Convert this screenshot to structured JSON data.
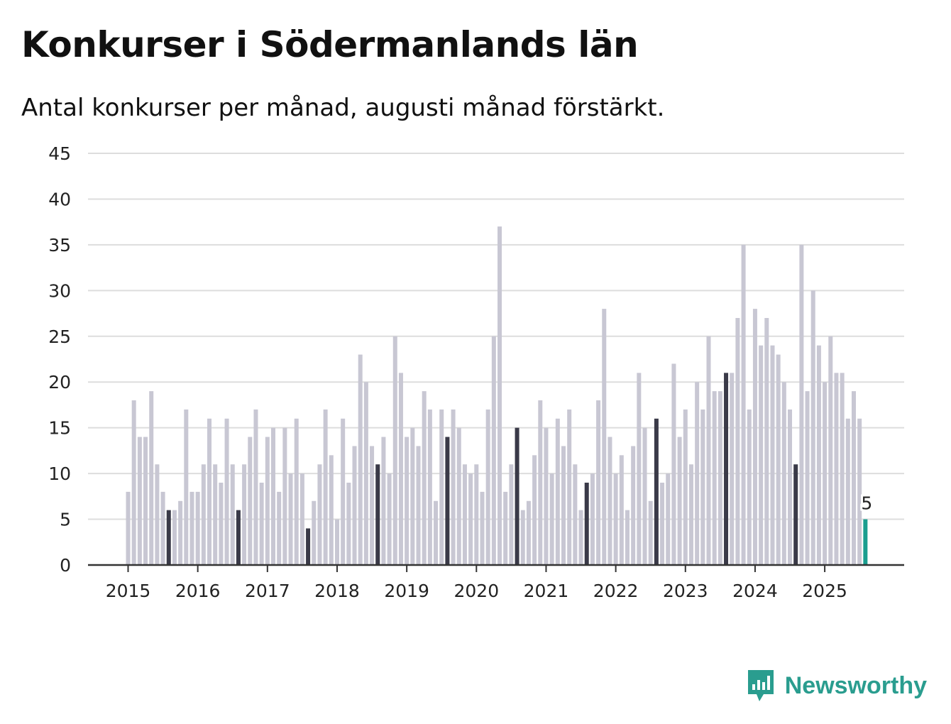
{
  "title": "Konkurser i Södermanlands län",
  "subtitle": "Antal konkurser per månad, augusti månad förstärkt.",
  "brand": "Newsworthy",
  "colors": {
    "bar": "#c8c7d3",
    "highlight": "#3a3a48",
    "latest": "#1a9e8f",
    "brand": "#2a9d8f"
  },
  "chart_data": {
    "type": "bar",
    "start": "2015-01",
    "ylim": [
      0,
      45
    ],
    "yticks": [
      0,
      5,
      10,
      15,
      20,
      25,
      30,
      35,
      40,
      45
    ],
    "xticks": [
      "2015",
      "2016",
      "2017",
      "2018",
      "2019",
      "2020",
      "2021",
      "2022",
      "2023",
      "2024",
      "2025"
    ],
    "highlight_month": "augusti",
    "latest_label": "5",
    "values": [
      8,
      18,
      14,
      14,
      19,
      11,
      8,
      6,
      6,
      7,
      17,
      8,
      8,
      11,
      16,
      11,
      9,
      16,
      11,
      6,
      11,
      14,
      17,
      9,
      14,
      15,
      8,
      15,
      10,
      16,
      10,
      4,
      7,
      11,
      17,
      12,
      5,
      16,
      9,
      13,
      23,
      20,
      13,
      11,
      14,
      10,
      25,
      21,
      14,
      15,
      13,
      19,
      17,
      7,
      17,
      14,
      17,
      15,
      11,
      10,
      11,
      8,
      17,
      25,
      37,
      8,
      11,
      15,
      6,
      7,
      12,
      18,
      15,
      10,
      16,
      13,
      17,
      11,
      6,
      9,
      10,
      18,
      28,
      14,
      10,
      12,
      6,
      13,
      21,
      15,
      7,
      16,
      9,
      10,
      22,
      14,
      17,
      11,
      20,
      17,
      25,
      19,
      19,
      21,
      21,
      27,
      35,
      17,
      28,
      24,
      27,
      24,
      23,
      20,
      17,
      11,
      35,
      19,
      30,
      24,
      20,
      25,
      21,
      21,
      16,
      19,
      16,
      5
    ]
  }
}
